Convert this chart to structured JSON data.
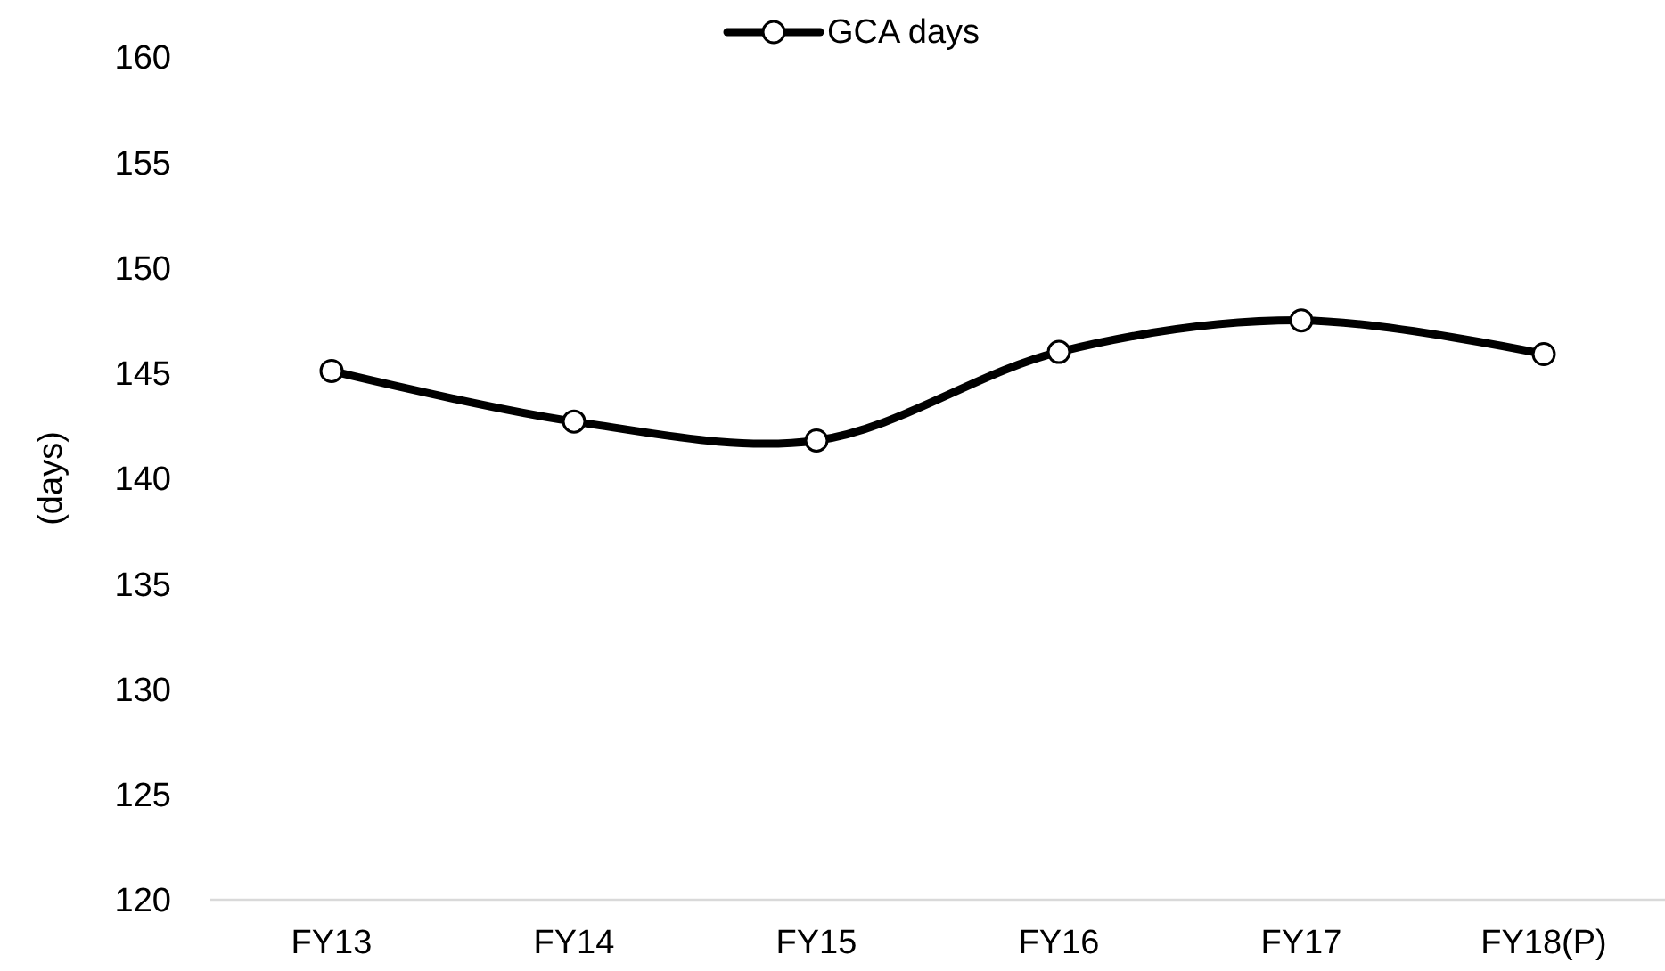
{
  "chart_data": {
    "type": "line",
    "ylabel": "(days)",
    "categories": [
      "FY13",
      "FY14",
      "FY15",
      "FY16",
      "FY17",
      "FY18(P)"
    ],
    "series": [
      {
        "name": "GCA days",
        "color": "#000000",
        "values": [
          145.1,
          142.7,
          141.8,
          146.0,
          147.5,
          145.9
        ]
      }
    ],
    "ylim": [
      120,
      160
    ],
    "yticks": [
      120,
      125,
      130,
      135,
      140,
      145,
      150,
      155,
      160
    ],
    "grid": false,
    "legend": "top",
    "marker": "circle",
    "line_style": "solid"
  }
}
